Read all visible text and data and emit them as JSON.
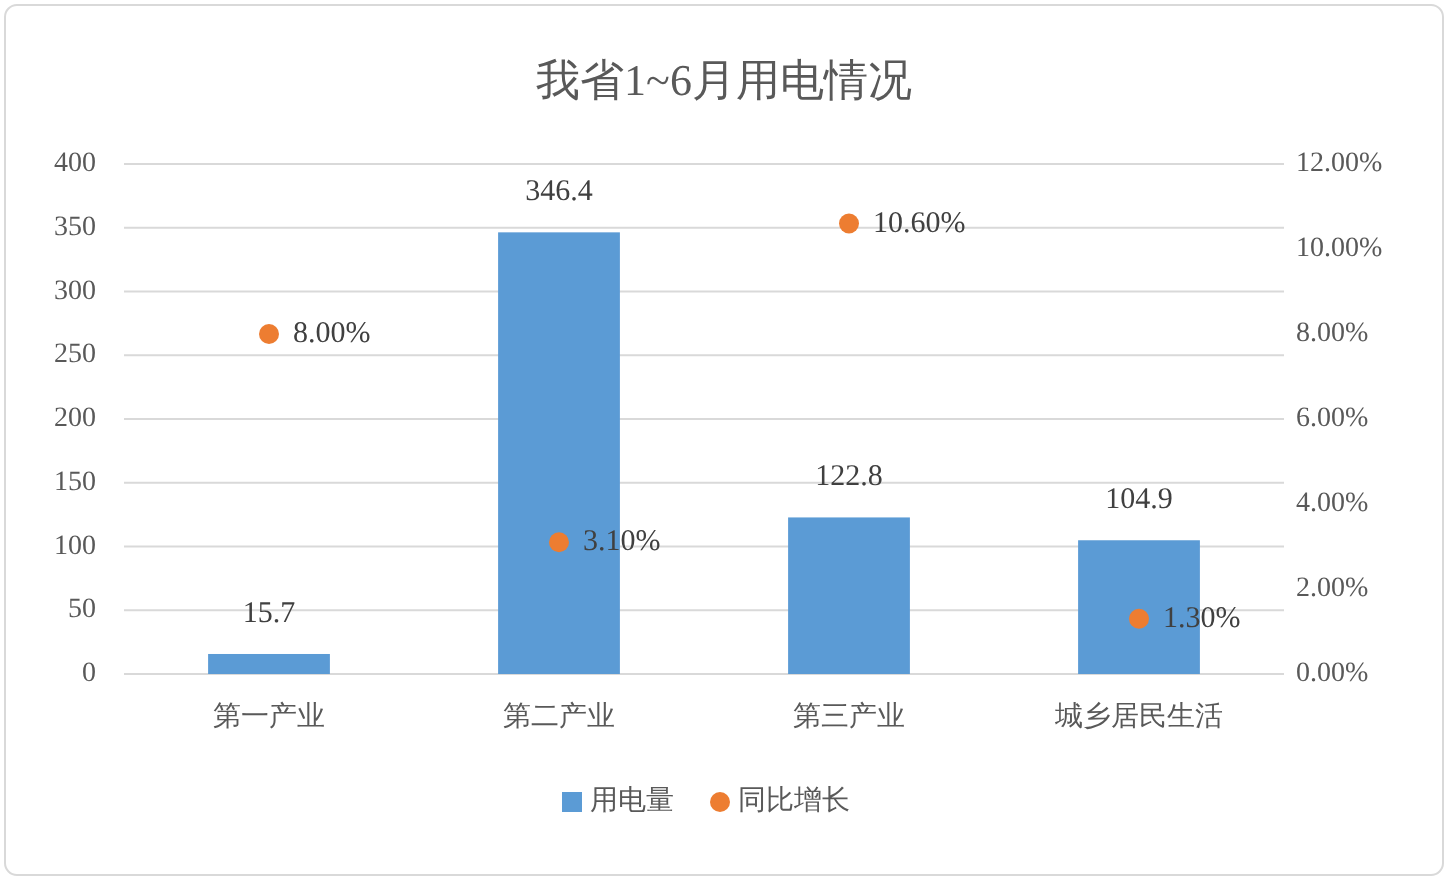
{
  "chart_data": {
    "type": "bar",
    "title": "我省1~6月用电情况",
    "categories": [
      "第一产业",
      "第二产业",
      "第三产业",
      "城乡居民生活"
    ],
    "series": [
      {
        "name": "用电量",
        "color": "#5b9bd5",
        "values": [
          15.7,
          346.4,
          122.8,
          104.9
        ],
        "value_labels": [
          "15.7",
          "346.4",
          "122.8",
          "104.9"
        ]
      },
      {
        "name": "同比增长",
        "type": "scatter",
        "axis": "y2",
        "color": "#ed7d31",
        "values": [
          8.0,
          3.1,
          10.6,
          1.3
        ],
        "value_labels": [
          "8.00%",
          "3.10%",
          "10.60%",
          "1.30%"
        ]
      }
    ],
    "ylim": [
      0,
      400
    ],
    "yticks": [
      0,
      50,
      100,
      150,
      200,
      250,
      300,
      350,
      400
    ],
    "y2lim": [
      0,
      12
    ],
    "y2ticks": [
      {
        "value": 0,
        "label": "0.00%"
      },
      {
        "value": 2,
        "label": "2.00%"
      },
      {
        "value": 4,
        "label": "4.00%"
      },
      {
        "value": 6,
        "label": "6.00%"
      },
      {
        "value": 8,
        "label": "8.00%"
      },
      {
        "value": 10,
        "label": "10.00%"
      },
      {
        "value": 12,
        "label": "12.00%"
      }
    ],
    "grid": "y",
    "legend": "bottom",
    "marker": "circle"
  }
}
